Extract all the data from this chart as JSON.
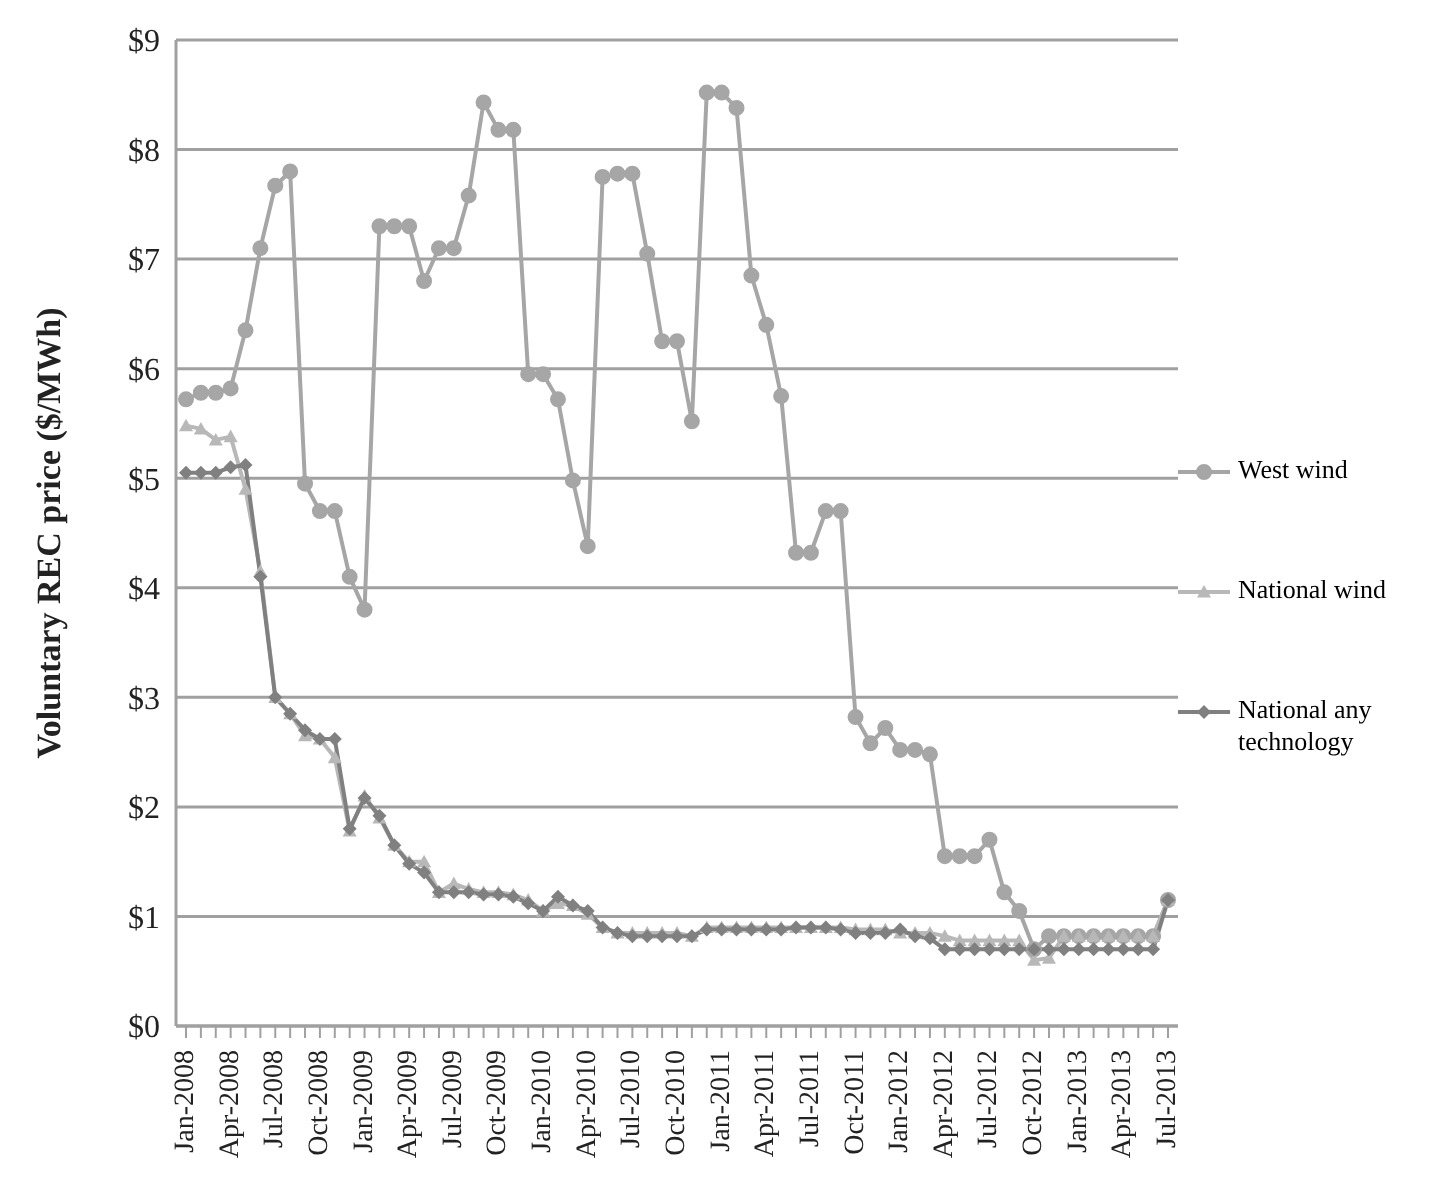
{
  "chart_data": {
    "type": "line",
    "ylabel": "Voluntary REC price ($/MWh)",
    "categories": [
      "Jan-2008",
      null,
      null,
      "Apr-2008",
      null,
      null,
      "Jul-2008",
      null,
      null,
      "Oct-2008",
      null,
      null,
      "Jan-2009",
      null,
      null,
      "Apr-2009",
      null,
      null,
      "Jul-2009",
      null,
      null,
      "Oct-2009",
      null,
      null,
      "Jan-2010",
      null,
      null,
      "Apr-2010",
      null,
      null,
      "Jul-2010",
      null,
      null,
      "Oct-2010",
      null,
      null,
      "Jan-2011",
      null,
      null,
      "Apr-2011",
      null,
      null,
      "Jul-2011",
      null,
      null,
      "Oct-2011",
      null,
      null,
      "Jan-2012",
      null,
      null,
      "Apr-2012",
      null,
      null,
      "Jul-2012",
      null,
      null,
      "Oct-2012",
      null,
      null,
      "Jan-2013",
      null,
      null,
      "Apr-2013",
      null,
      null,
      "Jul-2013"
    ],
    "series": [
      {
        "name": "West wind",
        "color": "#a6a6a6",
        "marker": "circle",
        "values": [
          5.72,
          5.78,
          5.78,
          5.82,
          6.35,
          7.1,
          7.67,
          7.8,
          4.95,
          4.7,
          4.7,
          4.1,
          3.8,
          7.3,
          7.3,
          7.3,
          6.8,
          7.1,
          7.1,
          7.58,
          8.43,
          8.18,
          8.18,
          5.95,
          5.95,
          5.72,
          4.98,
          4.38,
          7.75,
          7.78,
          7.78,
          7.05,
          6.25,
          6.25,
          5.52,
          8.52,
          8.52,
          8.38,
          6.85,
          6.4,
          5.75,
          4.32,
          4.32,
          4.7,
          4.7,
          2.82,
          2.58,
          2.72,
          2.52,
          2.52,
          2.48,
          1.55,
          1.55,
          1.55,
          1.7,
          1.22,
          1.05,
          0.7,
          0.82,
          0.82,
          0.82,
          0.82,
          0.82,
          0.82,
          0.82,
          0.82,
          1.15
        ]
      },
      {
        "name": "National wind",
        "color": "#b8b8b8",
        "marker": "triangle",
        "values": [
          5.48,
          5.45,
          5.35,
          5.38,
          4.9,
          4.15,
          3.0,
          2.85,
          2.65,
          2.62,
          2.45,
          1.78,
          2.1,
          1.9,
          1.65,
          1.5,
          1.5,
          1.22,
          1.3,
          1.25,
          1.22,
          1.22,
          1.2,
          1.15,
          1.05,
          1.12,
          1.1,
          1.02,
          0.9,
          0.85,
          0.85,
          0.85,
          0.85,
          0.85,
          0.82,
          0.9,
          0.9,
          0.9,
          0.9,
          0.9,
          0.9,
          0.9,
          0.9,
          0.9,
          0.9,
          0.88,
          0.88,
          0.88,
          0.85,
          0.85,
          0.85,
          0.82,
          0.78,
          0.78,
          0.78,
          0.78,
          0.78,
          0.6,
          0.62,
          0.82,
          0.82,
          0.82,
          0.82,
          0.82,
          0.82,
          0.82,
          1.15
        ]
      },
      {
        "name": "National any technology",
        "color": "#808080",
        "marker": "diamond",
        "values": [
          5.05,
          5.05,
          5.05,
          5.1,
          5.12,
          4.1,
          3.0,
          2.85,
          2.7,
          2.62,
          2.62,
          1.8,
          2.08,
          1.92,
          1.65,
          1.48,
          1.4,
          1.22,
          1.22,
          1.22,
          1.2,
          1.2,
          1.18,
          1.12,
          1.05,
          1.18,
          1.1,
          1.05,
          0.9,
          0.85,
          0.82,
          0.82,
          0.82,
          0.82,
          0.82,
          0.88,
          0.88,
          0.88,
          0.88,
          0.88,
          0.88,
          0.9,
          0.9,
          0.9,
          0.88,
          0.85,
          0.85,
          0.85,
          0.88,
          0.82,
          0.8,
          0.7,
          0.7,
          0.7,
          0.7,
          0.7,
          0.7,
          0.7,
          0.7,
          0.7,
          0.7,
          0.7,
          0.7,
          0.7,
          0.7,
          0.7,
          1.15
        ]
      }
    ],
    "ylim": [
      0,
      9
    ],
    "yticks": [
      {
        "value": 0,
        "label": "$0"
      },
      {
        "value": 1,
        "label": "$1"
      },
      {
        "value": 2,
        "label": "$2"
      },
      {
        "value": 3,
        "label": "$3"
      },
      {
        "value": 4,
        "label": "$4"
      },
      {
        "value": 5,
        "label": "$5"
      },
      {
        "value": 6,
        "label": "$6"
      },
      {
        "value": 7,
        "label": "$7"
      },
      {
        "value": 8,
        "label": "$8"
      },
      {
        "value": 9,
        "label": "$9"
      }
    ],
    "grid": "y",
    "legend": "right"
  }
}
